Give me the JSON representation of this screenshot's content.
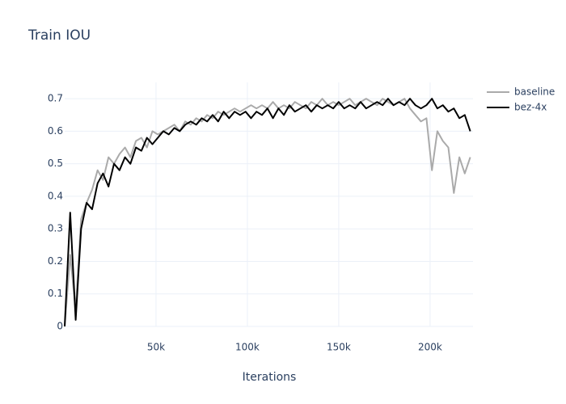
{
  "chart_data": {
    "type": "line",
    "title": "Train IOU",
    "x_label": "Iterations",
    "x": [
      0,
      3000,
      6000,
      9000,
      12000,
      15000,
      18000,
      21000,
      24000,
      27000,
      30000,
      33000,
      36000,
      39000,
      42000,
      45000,
      48000,
      51000,
      54000,
      57000,
      60000,
      63000,
      66000,
      69000,
      72000,
      75000,
      78000,
      81000,
      84000,
      87000,
      90000,
      93000,
      96000,
      99000,
      102000,
      105000,
      108000,
      111000,
      114000,
      117000,
      120000,
      123000,
      126000,
      129000,
      132000,
      135000,
      138000,
      141000,
      144000,
      147000,
      150000,
      153000,
      156000,
      159000,
      162000,
      165000,
      168000,
      171000,
      174000,
      177000,
      180000,
      183000,
      186000,
      189000,
      192000,
      195000,
      198000,
      201000,
      204000,
      207000,
      210000,
      213000,
      216000,
      219000,
      222000
    ],
    "series": [
      {
        "name": "baseline",
        "color": "#aaaaaa",
        "values": [
          0.0,
          0.22,
          0.05,
          0.33,
          0.38,
          0.42,
          0.48,
          0.45,
          0.52,
          0.5,
          0.53,
          0.55,
          0.52,
          0.57,
          0.58,
          0.55,
          0.6,
          0.59,
          0.6,
          0.61,
          0.62,
          0.6,
          0.63,
          0.62,
          0.64,
          0.63,
          0.65,
          0.64,
          0.66,
          0.65,
          0.66,
          0.67,
          0.66,
          0.67,
          0.68,
          0.67,
          0.68,
          0.67,
          0.69,
          0.67,
          0.68,
          0.67,
          0.69,
          0.68,
          0.67,
          0.69,
          0.68,
          0.7,
          0.68,
          0.69,
          0.68,
          0.69,
          0.7,
          0.68,
          0.69,
          0.7,
          0.69,
          0.68,
          0.7,
          0.69,
          0.68,
          0.69,
          0.7,
          0.67,
          0.65,
          0.63,
          0.64,
          0.48,
          0.6,
          0.57,
          0.55,
          0.41,
          0.52,
          0.47,
          0.52
        ]
      },
      {
        "name": "bez-4x",
        "color": "#000000",
        "values": [
          0.0,
          0.35,
          0.02,
          0.3,
          0.38,
          0.36,
          0.44,
          0.47,
          0.43,
          0.5,
          0.48,
          0.52,
          0.5,
          0.55,
          0.54,
          0.58,
          0.56,
          0.58,
          0.6,
          0.59,
          0.61,
          0.6,
          0.62,
          0.63,
          0.62,
          0.64,
          0.63,
          0.65,
          0.63,
          0.66,
          0.64,
          0.66,
          0.65,
          0.66,
          0.64,
          0.66,
          0.65,
          0.67,
          0.64,
          0.67,
          0.65,
          0.68,
          0.66,
          0.67,
          0.68,
          0.66,
          0.68,
          0.67,
          0.68,
          0.67,
          0.69,
          0.67,
          0.68,
          0.67,
          0.69,
          0.67,
          0.68,
          0.69,
          0.68,
          0.7,
          0.68,
          0.69,
          0.68,
          0.7,
          0.68,
          0.67,
          0.68,
          0.7,
          0.67,
          0.68,
          0.66,
          0.67,
          0.64,
          0.65,
          0.6
        ]
      }
    ],
    "xlim": [
      0,
      223500
    ],
    "ylim": [
      0,
      0.75
    ],
    "xticks": [
      {
        "value": 50000,
        "label": "50k"
      },
      {
        "value": 100000,
        "label": "100k"
      },
      {
        "value": 150000,
        "label": "150k"
      },
      {
        "value": 200000,
        "label": "200k"
      }
    ],
    "yticks": [
      0,
      0.1,
      0.2,
      0.3,
      0.4,
      0.5,
      0.6,
      0.7
    ],
    "grid": true,
    "legend": "right"
  }
}
